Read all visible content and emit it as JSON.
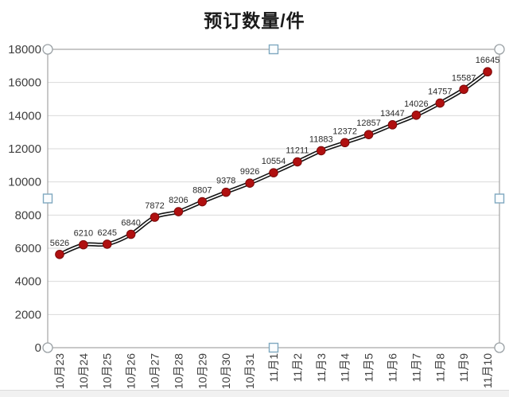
{
  "chart_data": {
    "type": "line",
    "title": "预订数量/件",
    "categories": [
      "10月23",
      "10月24",
      "10月25",
      "10月26",
      "10月27",
      "10月28",
      "10月29",
      "10月30",
      "10月31",
      "11月1",
      "11月2",
      "11月3",
      "11月4",
      "11月5",
      "11月6",
      "11月7",
      "11月8",
      "11月9",
      "11月10"
    ],
    "values": [
      5626,
      6210,
      6245,
      6840,
      7872,
      8206,
      8807,
      9378,
      9926,
      10554,
      11211,
      11883,
      12372,
      12857,
      13447,
      14026,
      14757,
      15587,
      16645
    ],
    "xlabel": "",
    "ylabel": "",
    "ylim": [
      0,
      18000
    ],
    "ytick_step": 2000,
    "yticks": [
      0,
      2000,
      4000,
      6000,
      8000,
      10000,
      12000,
      14000,
      16000,
      18000
    ],
    "grid": true,
    "legend": "none",
    "data_labels": true,
    "smooth": true,
    "x_labels_rotated": true,
    "plot_area_selected": true,
    "colors": {
      "marker": "#b01010",
      "marker_edge": "#7d0b0b",
      "line_outer": "#141414",
      "line_inner": "#ffffff",
      "grid": "#d9d9d9",
      "axis_text": "#3f3f3f",
      "label_text": "#2b2b2b",
      "title_text": "#1a1a1a",
      "selection_border": "#a3a3a3",
      "corner_handle_stroke": "#9aa0a4",
      "edge_handle_stroke": "#7fa8c0",
      "handle_fill": "#fbfdfe",
      "page_strip": "#f1f1f1"
    }
  }
}
